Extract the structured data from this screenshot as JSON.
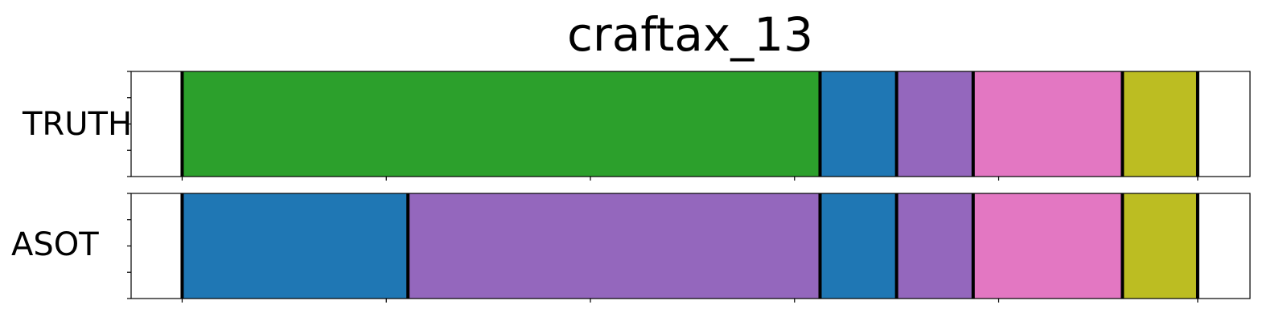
{
  "chart_data": {
    "type": "segmentation",
    "title": "craftax_13",
    "rows": [
      {
        "label": "TRUTH",
        "segments": [
          {
            "start": 0.0,
            "end": 0.4,
            "color": "#ffffff"
          },
          {
            "start": 0.4,
            "end": 5.4,
            "color": "#2ca02c"
          },
          {
            "start": 5.4,
            "end": 6.0,
            "color": "#1f77b4"
          },
          {
            "start": 6.0,
            "end": 6.6,
            "color": "#9467bd"
          },
          {
            "start": 6.6,
            "end": 7.77,
            "color": "#e377c2"
          },
          {
            "start": 7.77,
            "end": 8.36,
            "color": "#bcbd22"
          },
          {
            "start": 8.36,
            "end": 8.77,
            "color": "#ffffff"
          }
        ],
        "boundaries": [
          0.4,
          5.4,
          6.0,
          6.6,
          7.77,
          8.36
        ]
      },
      {
        "label": "ASOT",
        "segments": [
          {
            "start": 0.0,
            "end": 0.4,
            "color": "#ffffff"
          },
          {
            "start": 0.4,
            "end": 2.17,
            "color": "#1f77b4"
          },
          {
            "start": 2.17,
            "end": 5.4,
            "color": "#9467bd"
          },
          {
            "start": 5.4,
            "end": 6.0,
            "color": "#1f77b4"
          },
          {
            "start": 6.0,
            "end": 6.6,
            "color": "#9467bd"
          },
          {
            "start": 6.6,
            "end": 7.77,
            "color": "#e377c2"
          },
          {
            "start": 7.77,
            "end": 8.36,
            "color": "#bcbd22"
          },
          {
            "start": 8.36,
            "end": 8.77,
            "color": "#ffffff"
          }
        ],
        "boundaries": [
          0.4,
          2.17,
          5.4,
          6.0,
          6.6,
          7.77,
          8.36
        ]
      }
    ],
    "xlim": [
      0,
      8.77
    ],
    "x_ticks": [
      0.4,
      2.0,
      3.6,
      5.2,
      6.8,
      8.36
    ],
    "y_ticks_per_row": 5,
    "grid": false
  }
}
